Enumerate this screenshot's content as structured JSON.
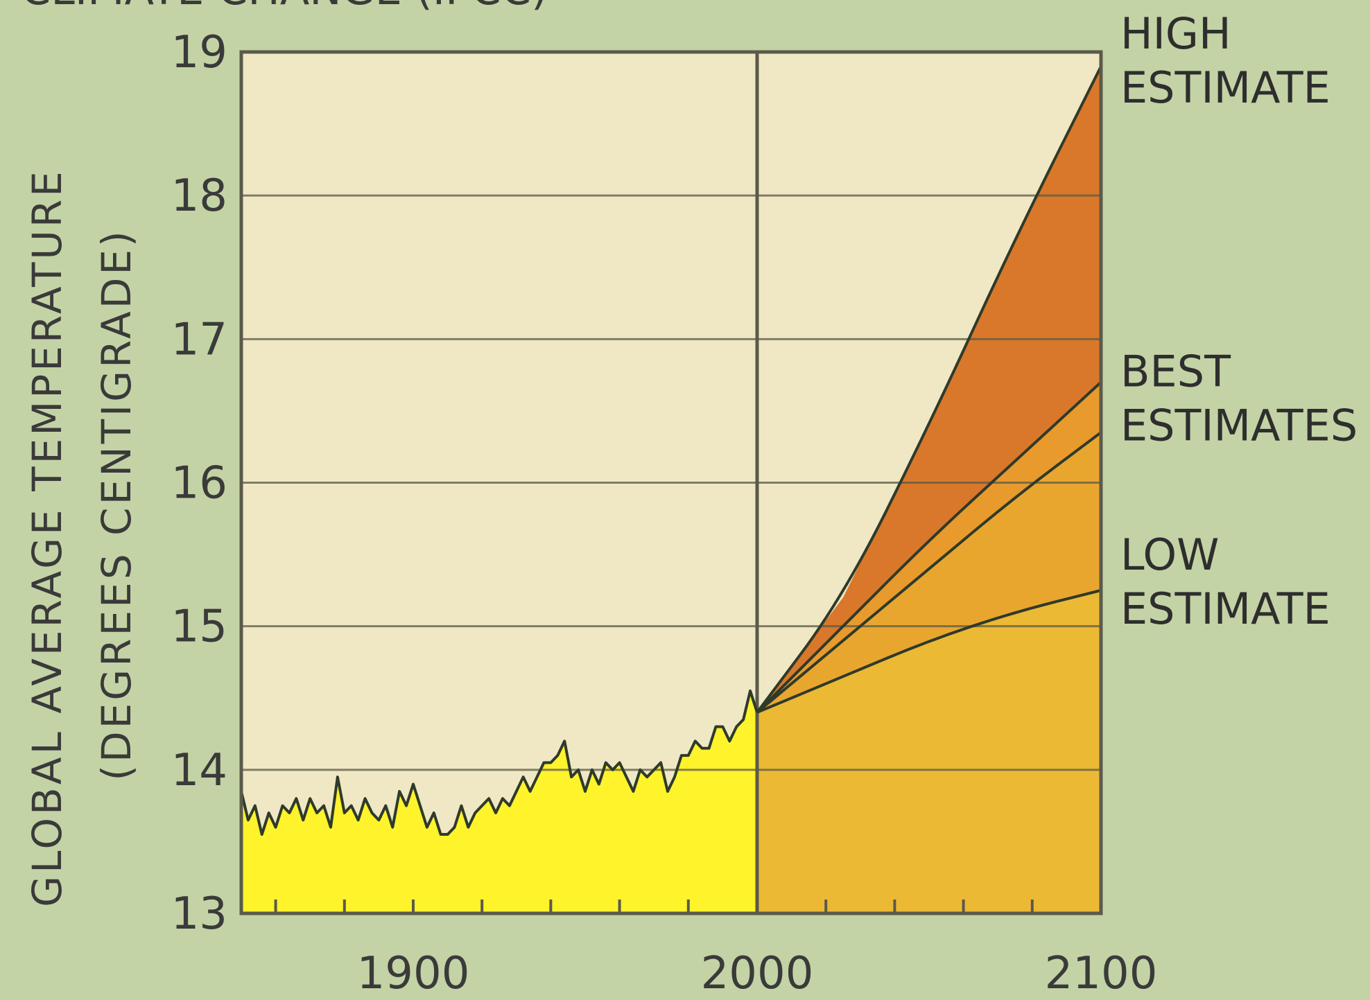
{
  "chart_data": {
    "type": "area",
    "header_partial": "CLIMATE CHANGE (IPCC)",
    "ylabel": "GLOBAL AVERAGE TEMPERATURE",
    "ylabel_sub": "(DEGREES CENTIGRADE)",
    "xlabel": "",
    "xlim": [
      1850,
      2100
    ],
    "ylim": [
      13,
      19
    ],
    "x_tick_labels": [
      1900,
      2000,
      2100
    ],
    "x_minor_ticks": [
      1860,
      1880,
      1900,
      1920,
      1940,
      1960,
      1980,
      2000,
      2020,
      2040,
      2060,
      2080,
      2100
    ],
    "y_ticks": [
      13,
      14,
      15,
      16,
      17,
      18,
      19
    ],
    "grid": true,
    "series": [
      {
        "name": "",
        "kind": "observed",
        "x": [
          1850,
          1852,
          1854,
          1856,
          1858,
          1860,
          1862,
          1864,
          1866,
          1868,
          1870,
          1872,
          1874,
          1876,
          1878,
          1880,
          1882,
          1884,
          1886,
          1888,
          1890,
          1892,
          1894,
          1896,
          1898,
          1900,
          1902,
          1904,
          1906,
          1908,
          1910,
          1912,
          1914,
          1916,
          1918,
          1920,
          1922,
          1924,
          1926,
          1928,
          1930,
          1932,
          1934,
          1936,
          1938,
          1940,
          1942,
          1944,
          1946,
          1948,
          1950,
          1952,
          1954,
          1956,
          1958,
          1960,
          1962,
          1964,
          1966,
          1968,
          1970,
          1972,
          1974,
          1976,
          1978,
          1980,
          1982,
          1984,
          1986,
          1988,
          1990,
          1992,
          1994,
          1996,
          1998,
          2000
        ],
        "y": [
          13.85,
          13.65,
          13.75,
          13.55,
          13.7,
          13.6,
          13.75,
          13.7,
          13.8,
          13.65,
          13.8,
          13.7,
          13.75,
          13.6,
          13.95,
          13.7,
          13.75,
          13.65,
          13.8,
          13.7,
          13.65,
          13.75,
          13.6,
          13.85,
          13.75,
          13.9,
          13.75,
          13.6,
          13.7,
          13.55,
          13.55,
          13.6,
          13.75,
          13.6,
          13.7,
          13.75,
          13.8,
          13.7,
          13.8,
          13.75,
          13.85,
          13.95,
          13.85,
          13.95,
          14.05,
          14.05,
          14.1,
          14.2,
          13.95,
          14.0,
          13.85,
          14.0,
          13.9,
          14.05,
          14.0,
          14.05,
          13.95,
          13.85,
          14.0,
          13.95,
          14.0,
          14.05,
          13.85,
          13.95,
          14.1,
          14.1,
          14.2,
          14.15,
          14.15,
          14.3,
          14.3,
          14.2,
          14.3,
          14.35,
          14.55,
          14.4
        ],
        "color": "#fff32b"
      },
      {
        "name": "HIGH ESTIMATE",
        "kind": "projection",
        "x": [
          2000,
          2025,
          2050,
          2075,
          2100
        ],
        "y": [
          14.4,
          15.2,
          16.4,
          17.7,
          18.9
        ],
        "color": "#d9782a"
      },
      {
        "name": "BEST ESTIMATES",
        "kind": "projection",
        "x": [
          2000,
          2025,
          2050,
          2075,
          2100
        ],
        "y": [
          14.4,
          15.0,
          15.6,
          16.15,
          16.7
        ],
        "color": "#e89a2c"
      },
      {
        "name": "BEST ESTIMATES",
        "kind": "projection",
        "x": [
          2000,
          2025,
          2050,
          2075,
          2100
        ],
        "y": [
          14.4,
          14.9,
          15.4,
          15.9,
          16.35
        ],
        "color": "#e9a52e"
      },
      {
        "name": "LOW ESTIMATE",
        "kind": "projection",
        "x": [
          2000,
          2025,
          2050,
          2075,
          2100
        ],
        "y": [
          14.4,
          14.65,
          14.9,
          15.1,
          15.25
        ],
        "color": "#ecb934"
      }
    ],
    "annotations": [
      {
        "lines": [
          "HIGH",
          "ESTIMATE"
        ],
        "series": "HIGH ESTIMATE"
      },
      {
        "lines": [
          "BEST",
          "ESTIMATES"
        ],
        "series": "BEST ESTIMATES"
      },
      {
        "lines": [
          "LOW",
          "ESTIMATE"
        ],
        "series": "LOW ESTIMATE"
      }
    ],
    "colors": {
      "page_background": "#c3d3a5",
      "plot_background": "#f0e8c4",
      "grid": "#5a5a4a",
      "line": "#2f3a2a",
      "observed_fill": "#fff32b",
      "projection_base_fill": "#ecb934",
      "high_band_fill": "#d9782a",
      "best_band_fill": "#e89a2c"
    }
  }
}
